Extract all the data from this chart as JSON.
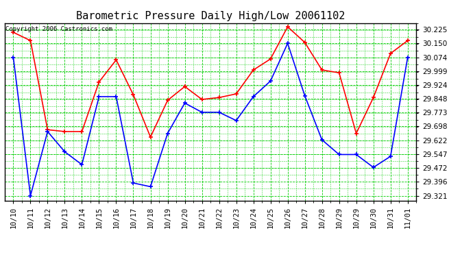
{
  "title": "Barometric Pressure Daily High/Low 20061102",
  "copyright": "Copyright 2006 Castronics.com",
  "x_labels": [
    "10/10",
    "10/11",
    "10/12",
    "10/13",
    "10/14",
    "10/15",
    "10/16",
    "10/17",
    "10/18",
    "10/19",
    "10/20",
    "10/21",
    "10/22",
    "10/23",
    "10/24",
    "10/25",
    "10/26",
    "10/27",
    "10/28",
    "10/29",
    "10/29",
    "10/30",
    "10/31",
    "11/01"
  ],
  "high_values": [
    30.21,
    30.165,
    29.68,
    29.67,
    29.67,
    29.94,
    30.06,
    29.87,
    29.64,
    29.84,
    29.915,
    29.845,
    29.855,
    29.875,
    30.005,
    30.065,
    30.24,
    30.155,
    30.005,
    29.99,
    29.66,
    29.855,
    30.095,
    30.165
  ],
  "low_values": [
    30.074,
    29.321,
    29.67,
    29.56,
    29.49,
    29.86,
    29.86,
    29.39,
    29.37,
    29.66,
    29.825,
    29.775,
    29.775,
    29.73,
    29.86,
    29.945,
    30.15,
    29.865,
    29.625,
    29.545,
    29.545,
    29.475,
    29.535,
    30.074
  ],
  "ylim": [
    29.295,
    30.26
  ],
  "yticks": [
    29.321,
    29.396,
    29.472,
    29.547,
    29.622,
    29.698,
    29.773,
    29.848,
    29.924,
    29.999,
    30.074,
    30.15,
    30.225
  ],
  "high_color": "#ff0000",
  "low_color": "#0000ff",
  "bg_color": "#ffffff",
  "plot_bg_color": "#ffffff",
  "grid_major_color": "#00cc00",
  "grid_minor_color": "#00cc00",
  "title_fontsize": 11,
  "tick_fontsize": 7.5,
  "copyright_fontsize": 6.5
}
